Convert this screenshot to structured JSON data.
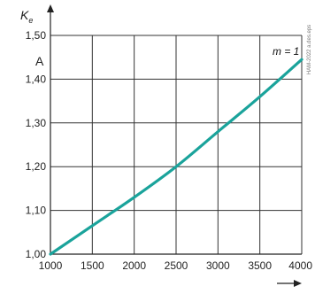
{
  "chart_data": {
    "type": "line",
    "title": "",
    "ylabel": "K",
    "ylabel_subscript": "e",
    "yunit": "A",
    "xlabel": "",
    "xlim": [
      1000,
      4000
    ],
    "ylim": [
      1.0,
      1.5
    ],
    "xticks": [
      1000,
      1500,
      2000,
      2500,
      3000,
      3500,
      4000
    ],
    "xtick_labels": [
      "1000",
      "1500",
      "2000",
      "2500",
      "3000",
      "3500",
      "4000"
    ],
    "yticks": [
      1.0,
      1.1,
      1.2,
      1.3,
      1.4,
      1.5
    ],
    "ytick_labels": [
      "1,00",
      "1,10",
      "1,20",
      "1,30",
      "1,40",
      "1,50"
    ],
    "grid": true,
    "annotation": "m = 1",
    "watermark": "HAM-2022 a.des.eps",
    "x_arrow": "right",
    "y_arrow": "up",
    "series": [
      {
        "color": "#1aa39b",
        "x": [
          1000,
          1500,
          2000,
          2500,
          3000,
          3500,
          4000
        ],
        "y": [
          1.0,
          1.065,
          1.13,
          1.2,
          1.28,
          1.36,
          1.445
        ]
      }
    ]
  }
}
